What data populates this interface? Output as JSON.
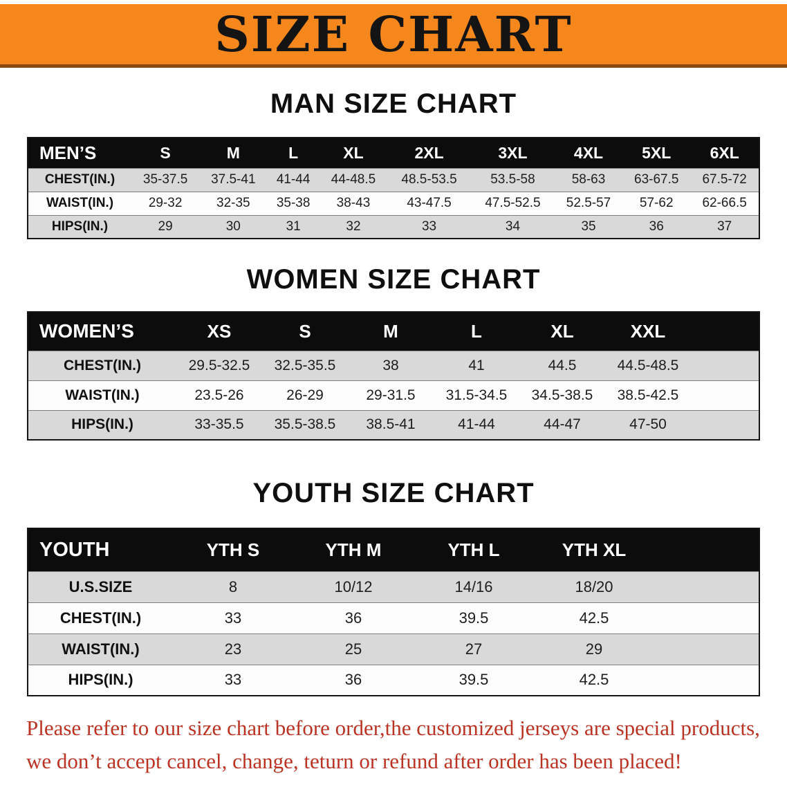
{
  "banner": {
    "title": "SIZE CHART"
  },
  "colors": {
    "banner_bg": "#f6871c",
    "banner_edge": "#8c4a10",
    "table_header_bg": "#0c0c0c",
    "row_alt_bg": "#d9d9d9",
    "note_text": "#bb3323"
  },
  "men": {
    "heading": "MAN SIZE CHART",
    "header": [
      "MEN’S",
      "S",
      "M",
      "L",
      "XL",
      "2XL",
      "3XL",
      "4XL",
      "5XL",
      "6XL"
    ],
    "rows": [
      {
        "label": "CHEST(IN.)",
        "values": [
          "35-37.5",
          "37.5-41",
          "41-44",
          "44-48.5",
          "48.5-53.5",
          "53.5-58",
          "58-63",
          "63-67.5",
          "67.5-72"
        ]
      },
      {
        "label": "WAIST(IN.)",
        "values": [
          "29-32",
          "32-35",
          "35-38",
          "38-43",
          "43-47.5",
          "47.5-52.5",
          "52.5-57",
          "57-62",
          "62-66.5"
        ]
      },
      {
        "label": "HIPS(IN.)",
        "values": [
          "29",
          "30",
          "31",
          "32",
          "33",
          "34",
          "35",
          "36",
          "37"
        ]
      }
    ]
  },
  "women": {
    "heading": "WOMEN SIZE CHART",
    "header": [
      "WOMEN’S",
      "XS",
      "S",
      "M",
      "L",
      "XL",
      "XXL"
    ],
    "rows": [
      {
        "label": "CHEST(IN.)",
        "values": [
          "29.5-32.5",
          "32.5-35.5",
          "38",
          "41",
          "44.5",
          "44.5-48.5"
        ]
      },
      {
        "label": "WAIST(IN.)",
        "values": [
          "23.5-26",
          "26-29",
          "29-31.5",
          "31.5-34.5",
          "34.5-38.5",
          "38.5-42.5"
        ]
      },
      {
        "label": "HIPS(IN.)",
        "values": [
          "33-35.5",
          "35.5-38.5",
          "38.5-41",
          "41-44",
          "44-47",
          "47-50"
        ]
      }
    ]
  },
  "youth": {
    "heading": "YOUTH SIZE CHART",
    "header": [
      "YOUTH",
      "YTH S",
      "YTH M",
      "YTH L",
      "YTH XL"
    ],
    "rows": [
      {
        "label": "U.S.SIZE",
        "values": [
          "8",
          "10/12",
          "14/16",
          "18/20"
        ]
      },
      {
        "label": "CHEST(IN.)",
        "values": [
          "33",
          "36",
          "39.5",
          "42.5"
        ]
      },
      {
        "label": "WAIST(IN.)",
        "values": [
          "23",
          "25",
          "27",
          "29"
        ]
      },
      {
        "label": "HIPS(IN.)",
        "values": [
          "33",
          "36",
          "39.5",
          "42.5"
        ]
      }
    ]
  },
  "note": {
    "line1": "Please refer to our size chart before order,the customized jerseys are special products,",
    "line2": "we don’t accept cancel, change, teturn or refund after order has been placed!"
  }
}
